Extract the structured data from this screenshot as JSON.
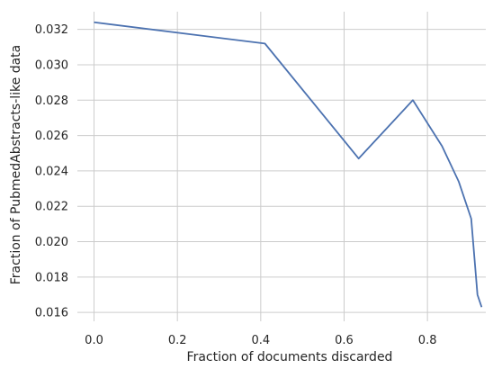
{
  "chart_data": {
    "type": "line",
    "title": "",
    "xlabel": "Fraction of documents discarded",
    "ylabel": "Fraction of PubmedAbstracts-like data",
    "xlim": [
      -0.04,
      0.94
    ],
    "ylim": [
      0.0155,
      0.033
    ],
    "xticks": [
      0.0,
      0.2,
      0.4,
      0.6,
      0.8
    ],
    "xtick_labels": [
      "0.0",
      "0.2",
      "0.4",
      "0.6",
      "0.8"
    ],
    "yticks": [
      0.016,
      0.018,
      0.02,
      0.022,
      0.024,
      0.026,
      0.028,
      0.03,
      0.032
    ],
    "ytick_labels": [
      "0.016",
      "0.018",
      "0.020",
      "0.022",
      "0.024",
      "0.026",
      "0.028",
      "0.030",
      "0.032"
    ],
    "grid": true,
    "colors": {
      "line": "#4c72b0",
      "grid": "#cccccc",
      "text": "#262626"
    },
    "series": [
      {
        "x": [
          0.0,
          0.41,
          0.635,
          0.765,
          0.835,
          0.875,
          0.905,
          0.92,
          0.93
        ],
        "y": [
          0.0324,
          0.0312,
          0.0247,
          0.028,
          0.0254,
          0.0234,
          0.0213,
          0.017,
          0.0163
        ]
      }
    ]
  }
}
